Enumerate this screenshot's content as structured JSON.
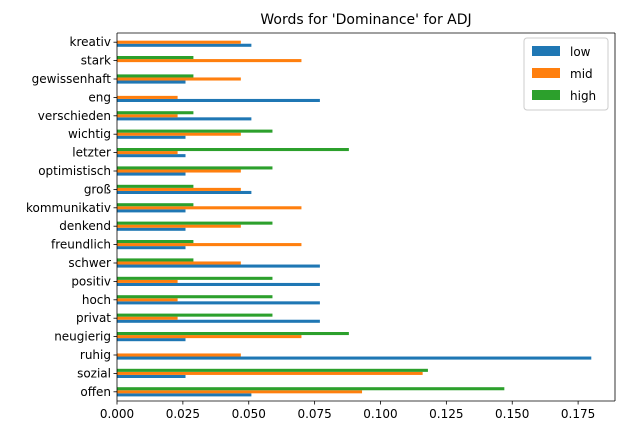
{
  "chart_data": {
    "type": "bar",
    "orientation": "horizontal",
    "title": "Words for 'Dominance' for ADJ",
    "xlabel": "",
    "ylabel": "",
    "xlim": [
      0,
      0.189
    ],
    "xticks": [
      "0.000",
      "0.025",
      "0.050",
      "0.075",
      "0.100",
      "0.125",
      "0.150",
      "0.175"
    ],
    "categories": [
      "offen",
      "sozial",
      "ruhig",
      "neugierig",
      "privat",
      "hoch",
      "positiv",
      "schwer",
      "freundlich",
      "denkend",
      "kommunikativ",
      "groß",
      "optimistisch",
      "letzter",
      "wichtig",
      "verschieden",
      "eng",
      "gewissenhaft",
      "stark",
      "kreativ"
    ],
    "series": [
      {
        "name": "low",
        "color": "#1f77b4",
        "values": [
          0.051,
          0.026,
          0.18,
          0.026,
          0.077,
          0.077,
          0.077,
          0.077,
          0.026,
          0.026,
          0.026,
          0.051,
          0.026,
          0.026,
          0.026,
          0.051,
          0.077,
          0.026,
          0.0,
          0.051
        ]
      },
      {
        "name": "mid",
        "color": "#ff7f0e",
        "values": [
          0.093,
          0.116,
          0.047,
          0.07,
          0.023,
          0.023,
          0.023,
          0.047,
          0.07,
          0.047,
          0.07,
          0.047,
          0.047,
          0.023,
          0.047,
          0.023,
          0.023,
          0.047,
          0.07,
          0.047
        ]
      },
      {
        "name": "high",
        "color": "#2ca02c",
        "values": [
          0.147,
          0.118,
          0.0,
          0.088,
          0.059,
          0.059,
          0.059,
          0.029,
          0.029,
          0.059,
          0.029,
          0.029,
          0.059,
          0.088,
          0.059,
          0.029,
          0.0,
          0.029,
          0.029,
          0.0
        ]
      }
    ],
    "legend": "top-right",
    "grid": false
  }
}
